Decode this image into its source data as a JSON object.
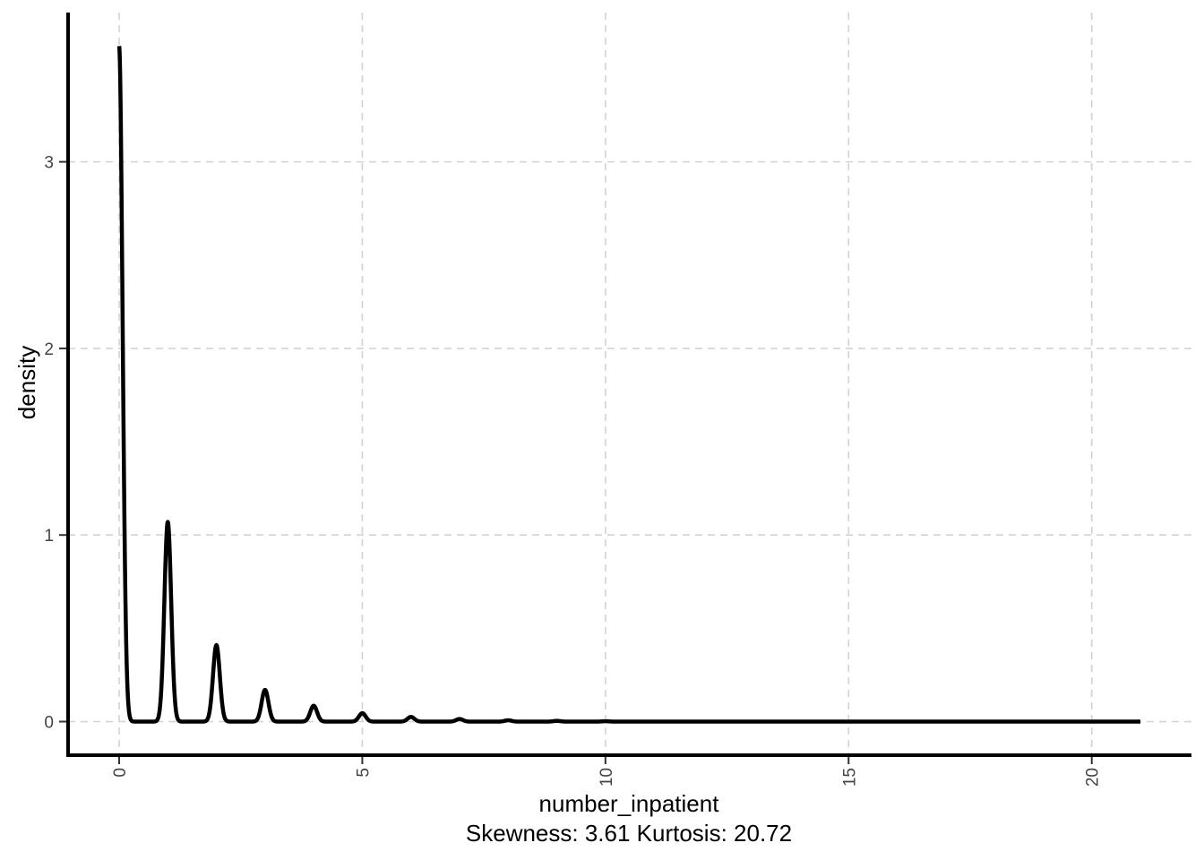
{
  "chart_data": {
    "type": "line",
    "xlabel": "number_inpatient",
    "subtitle": "Skewness: 3.61 Kurtosis: 20.72",
    "ylabel": "density",
    "xlim": [
      -1.05,
      22.05
    ],
    "ylim": [
      -0.18,
      3.8
    ],
    "x_ticks": [
      0,
      5,
      10,
      15,
      20
    ],
    "y_ticks": [
      0,
      1,
      2,
      3
    ],
    "x_tick_labels": [
      "0",
      "5",
      "10",
      "15",
      "20"
    ],
    "y_tick_labels": [
      "0",
      "1",
      "2",
      "3"
    ],
    "grid": true,
    "x_range_of_curve": [
      0,
      21
    ],
    "peaks": [
      {
        "x": 0,
        "density": 3.62
      },
      {
        "x": 1,
        "density": 1.07
      },
      {
        "x": 2,
        "density": 0.41
      },
      {
        "x": 3,
        "density": 0.17
      },
      {
        "x": 4,
        "density": 0.085
      },
      {
        "x": 5,
        "density": 0.045
      },
      {
        "x": 6,
        "density": 0.025
      },
      {
        "x": 7,
        "density": 0.014
      },
      {
        "x": 8,
        "density": 0.007
      },
      {
        "x": 9,
        "density": 0.004
      },
      {
        "x": 10,
        "density": 0.002
      }
    ]
  }
}
